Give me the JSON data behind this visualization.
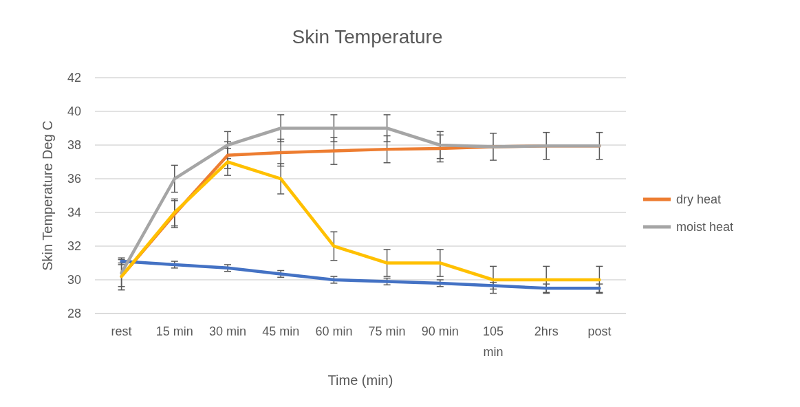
{
  "chart_data": {
    "type": "line",
    "title": "Skin Temperature",
    "xlabel": "Time (min)",
    "ylabel": "Skin Temperature Deg C",
    "categories": [
      "rest",
      "15 min",
      "30 min",
      "45 min",
      "60 min",
      "75 min",
      "90 min",
      "105 min",
      "2hrs",
      "post"
    ],
    "ylim": [
      28,
      42
    ],
    "yticks": [
      28,
      30,
      32,
      34,
      36,
      38,
      40,
      42
    ],
    "grid": "y",
    "legend": "right",
    "marker": "none",
    "line_style": "solid",
    "series": [
      {
        "color": "#4472c4",
        "values": [
          31.1,
          30.9,
          30.7,
          30.35,
          30.0,
          29.9,
          29.8,
          29.65,
          29.5,
          29.5
        ],
        "errors": [
          0.2,
          0.2,
          0.2,
          0.2,
          0.2,
          0.2,
          0.2,
          0.2,
          0.25,
          0.25
        ]
      },
      {
        "name": "dry heat",
        "color": "#ed7d31",
        "values": [
          30.2,
          33.9,
          37.4,
          37.55,
          37.65,
          37.75,
          37.8,
          37.9,
          37.95,
          37.95
        ],
        "errors": [
          0.8,
          0.8,
          0.8,
          0.8,
          0.8,
          0.8,
          0.8,
          null,
          null,
          null
        ]
      },
      {
        "name": "moist heat",
        "color": "#a5a5a5",
        "values": [
          30.4,
          36,
          38,
          39,
          39,
          39,
          38,
          37.9,
          37.95,
          37.95
        ],
        "errors": [
          0.8,
          0.8,
          0.8,
          0.8,
          0.8,
          0.8,
          0.8,
          0.8,
          0.8,
          0.8
        ]
      },
      {
        "color": "#ffc000",
        "values": [
          30.2,
          34,
          37,
          36,
          32,
          31,
          31,
          30,
          30,
          30
        ],
        "errors": [
          null,
          0.8,
          0.8,
          0.9,
          0.85,
          0.8,
          0.8,
          0.8,
          0.8,
          0.8
        ]
      }
    ]
  }
}
